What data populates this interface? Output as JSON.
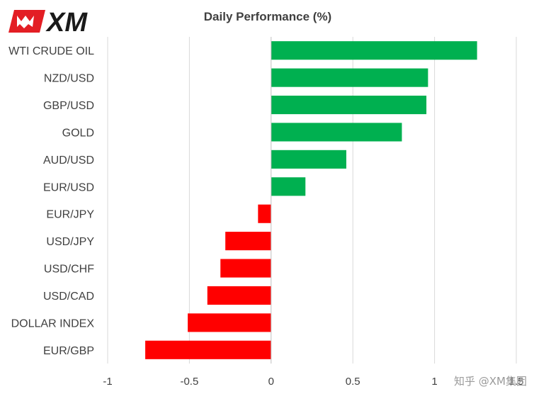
{
  "brand": {
    "logo_text": "XM",
    "logo_color": "#e31e24"
  },
  "watermark": "知乎 @XM集团",
  "chart_data": {
    "type": "bar",
    "orientation": "horizontal",
    "title": "Daily Performance (%)",
    "categories": [
      "WTI CRUDE OIL",
      "NZD/USD",
      "GBP/USD",
      "GOLD",
      "AUD/USD",
      "EUR/USD",
      "EUR/JPY",
      "USD/JPY",
      "USD/CHF",
      "USD/CAD",
      "DOLLAR INDEX",
      "EUR/GBP"
    ],
    "values": [
      1.26,
      0.96,
      0.95,
      0.8,
      0.46,
      0.21,
      -0.08,
      -0.28,
      -0.31,
      -0.39,
      -0.51,
      -0.77
    ],
    "xlim": [
      -1,
      1.5
    ],
    "xticks": [
      -1,
      -0.5,
      0,
      0.5,
      1,
      1.5
    ],
    "xtick_labels": [
      "-1",
      "-0.5",
      "0",
      "0.5",
      "1",
      "1.5"
    ],
    "grid": "vertical",
    "positive_color": "#00b050",
    "negative_color": "#ff0000"
  }
}
